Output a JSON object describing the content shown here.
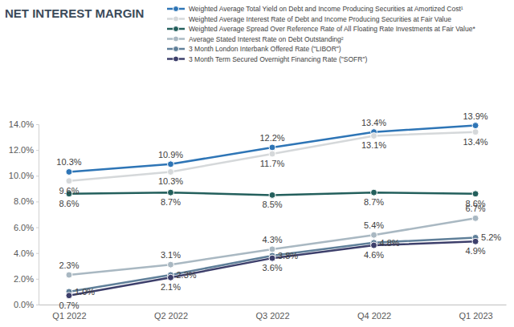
{
  "chart_data": {
    "type": "line",
    "title": "NET INTEREST MARGIN",
    "categories": [
      "Q1 2022",
      "Q2 2022",
      "Q3 2022",
      "Q4 2022",
      "Q1 2023"
    ],
    "series": [
      {
        "name": "Weighted Average Total Yield on Debt and Income Producing Securities at Amortized Cost¹",
        "color": "#2e75b6",
        "values": [
          10.3,
          10.9,
          12.2,
          13.4,
          13.9
        ],
        "value_labels": [
          "10.3%",
          "10.9%",
          "12.2%",
          "13.4%",
          "13.9%"
        ]
      },
      {
        "name": "Weighted Average Interest Rate of Debt and Income Producing Securities at Fair Value",
        "color": "#d5d8da",
        "values": [
          9.6,
          10.3,
          11.7,
          13.1,
          13.4
        ],
        "value_labels": [
          "9.6%",
          "10.3%",
          "11.7%",
          "13.1%",
          "13.4%"
        ]
      },
      {
        "name": "Weighted Average Spread Over Reference Rate of All Floating Rate Investments at Fair Value*",
        "color": "#235f5c",
        "values": [
          8.6,
          8.7,
          8.5,
          8.7,
          8.6
        ],
        "value_labels": [
          "8.6%",
          "8.7%",
          "8.5%",
          "8.7%",
          "8.6%"
        ]
      },
      {
        "name": "Average Stated Interest Rate on Debt Outstanding²",
        "color": "#a9b8c2",
        "values": [
          2.3,
          3.1,
          4.3,
          5.4,
          6.7
        ],
        "value_labels": [
          "2.3%",
          "3.1%",
          "4.3%",
          "5.4%",
          "6.7%"
        ]
      },
      {
        "name": "3 Month London Interbank Offered Rate (\"LIBOR\")",
        "color": "#5f7f99",
        "values": [
          1.0,
          2.3,
          3.8,
          4.8,
          5.2
        ],
        "value_labels": [
          "1.0%",
          "2.3%",
          "3.8%",
          "4.8%",
          "5.2%"
        ]
      },
      {
        "name": "3 Month Term Secured Overnight Financing Rate (\"SOFR\")",
        "color": "#3d3f6b",
        "values": [
          0.7,
          2.1,
          3.6,
          4.6,
          4.9
        ],
        "value_labels": [
          "0.7%",
          "2.1%",
          "3.6%",
          "4.6%",
          "4.9%"
        ]
      }
    ],
    "ylim": [
      0,
      14
    ],
    "yticks": [
      {
        "value": 0,
        "label": "0.0%"
      },
      {
        "value": 2,
        "label": "2.0%"
      },
      {
        "value": 4,
        "label": "4.0%"
      },
      {
        "value": 6,
        "label": "6.0%"
      },
      {
        "value": 8,
        "label": "8.0%"
      },
      {
        "value": 10,
        "label": "10.0%"
      },
      {
        "value": 12,
        "label": "12.0%"
      },
      {
        "value": 14,
        "label": "14.0%"
      }
    ],
    "grid": false,
    "legend": "top",
    "data_labels": true,
    "marker": "circle"
  }
}
